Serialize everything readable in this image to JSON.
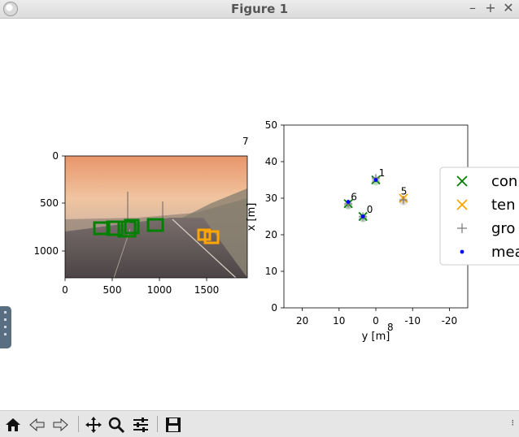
{
  "window": {
    "title": "Figure 1",
    "minimize": "–",
    "maximize": "+",
    "close": "✕"
  },
  "figure_labels": {
    "left_corner": "7",
    "right_corner": "8"
  },
  "image_axes": {
    "x_ticks": [
      "0",
      "500",
      "1000",
      "1500"
    ],
    "y_ticks": [
      "0",
      "500",
      "1000"
    ]
  },
  "legend": {
    "entries": [
      {
        "label": "con",
        "marker": "x",
        "color": "#008000"
      },
      {
        "label": "ten",
        "marker": "x",
        "color": "#ffa500"
      },
      {
        "label": "gro",
        "marker": "+",
        "color": "#7f7f7f"
      },
      {
        "label": "mea",
        "marker": ".",
        "color": "#0000ff"
      }
    ]
  },
  "chart_data": {
    "type": "scatter",
    "xlabel": "y [m]",
    "ylabel": "x [m]",
    "xlim": [
      25,
      -25
    ],
    "ylim": [
      0,
      50
    ],
    "x_ticks": [
      20,
      10,
      0,
      -10,
      -20
    ],
    "y_ticks": [
      0,
      10,
      20,
      30,
      40,
      50
    ],
    "series": [
      {
        "name": "con",
        "marker": "x",
        "color": "#008000",
        "points": [
          {
            "id": "1",
            "x": 0,
            "y": 35
          },
          {
            "id": "6",
            "x": 7.5,
            "y": 28.5
          },
          {
            "id": "0",
            "x": 3.5,
            "y": 25
          }
        ]
      },
      {
        "name": "ten",
        "marker": "x",
        "color": "#ffa500",
        "points": [
          {
            "id": "5",
            "x": -7.5,
            "y": 30
          }
        ]
      },
      {
        "name": "gro",
        "marker": "+",
        "color": "#7f7f7f",
        "points": [
          {
            "id": "1",
            "x": 0,
            "y": 35.5
          },
          {
            "id": "6",
            "x": 7.5,
            "y": 28.5
          },
          {
            "id": "0",
            "x": 3.5,
            "y": 25
          },
          {
            "id": "5",
            "x": -7.5,
            "y": 29.5
          }
        ]
      },
      {
        "name": "mea",
        "marker": ".",
        "color": "#0000ff",
        "points": [
          {
            "id": "1",
            "x": 0,
            "y": 35
          },
          {
            "id": "6",
            "x": 7.5,
            "y": 29
          },
          {
            "id": "0",
            "x": 3.5,
            "y": 25
          }
        ]
      }
    ],
    "annotations": [
      {
        "text": "1",
        "x": -0.8,
        "y": 36
      },
      {
        "text": "6",
        "x": 6.8,
        "y": 29.5
      },
      {
        "text": "0",
        "x": 2.5,
        "y": 26
      },
      {
        "text": "5",
        "x": -6.8,
        "y": 31
      }
    ]
  },
  "toolbar": {
    "buttons": [
      "home-icon",
      "back-icon",
      "forward-icon",
      "pan-icon",
      "zoom-icon",
      "configure-icon",
      "save-icon"
    ],
    "status": "⁝"
  }
}
